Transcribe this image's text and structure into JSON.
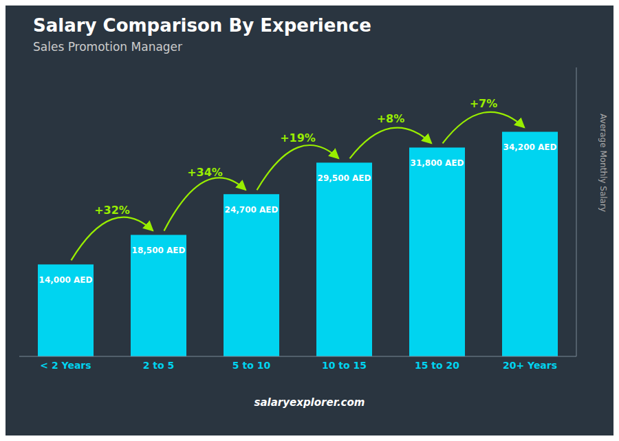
{
  "chart_data": {
    "type": "bar",
    "title": "Salary Comparison By Experience",
    "subtitle": "Sales Promotion Manager",
    "ylabel": "Average Monthly Salary",
    "categories": [
      "< 2 Years",
      "2 to 5",
      "5 to 10",
      "10 to 15",
      "15 to 20",
      "20+ Years"
    ],
    "values": [
      14000,
      18500,
      24700,
      29500,
      31800,
      34200
    ],
    "value_labels": [
      "14,000 AED",
      "18,500 AED",
      "24,700 AED",
      "29,500 AED",
      "31,800 AED",
      "34,200 AED"
    ],
    "annotations": [
      "+32%",
      "+34%",
      "+19%",
      "+8%",
      "+7%"
    ],
    "footer": "salaryexplorer.com",
    "color": "#00d4f0",
    "ylim": [
      0,
      44000
    ],
    "data_labels": true,
    "tick_labels": "x"
  }
}
